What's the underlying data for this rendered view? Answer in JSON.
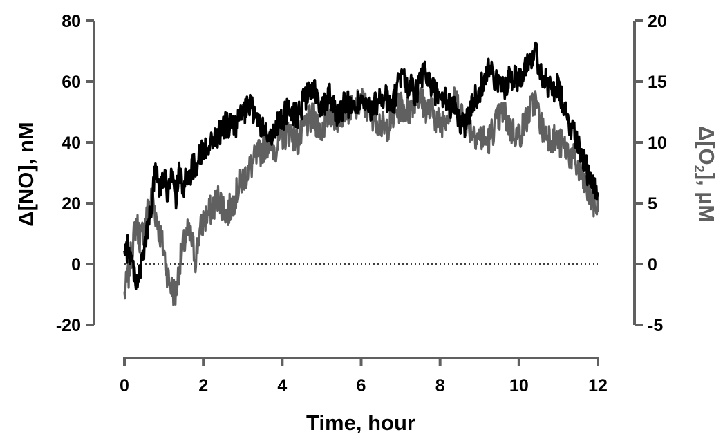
{
  "chart_data": {
    "type": "line",
    "x_axis": {
      "label": "Time, hour",
      "range": [
        0,
        12
      ],
      "ticks": [
        0,
        2,
        4,
        6,
        8,
        10,
        12
      ],
      "tick_labels": [
        "0",
        "2",
        "4",
        "6",
        "8",
        "10",
        "12"
      ]
    },
    "y_left": {
      "label": "Δ[NO], nM",
      "range": [
        -20,
        80
      ],
      "ticks": [
        -20,
        0,
        20,
        40,
        60,
        80
      ],
      "tick_labels": [
        "-20",
        "0",
        "20",
        "40",
        "60",
        "80"
      ]
    },
    "y_right": {
      "label_main": "Δ[O",
      "label_sub": "2",
      "label_tail": "], μM",
      "range": [
        -5,
        20
      ],
      "ticks": [
        -5,
        0,
        5,
        10,
        15,
        20
      ],
      "tick_labels": [
        "-5",
        "0",
        "5",
        "10",
        "15",
        "20"
      ]
    },
    "zero_line": {
      "y": 0,
      "style": "dotted"
    },
    "grid": false,
    "series": [
      {
        "axis": "right",
        "color": "#606060",
        "x": [
          0.0,
          0.1,
          0.2,
          0.3,
          0.4,
          0.5,
          0.6,
          0.7,
          0.8,
          0.9,
          1.0,
          1.1,
          1.2,
          1.3,
          1.4,
          1.5,
          1.6,
          1.7,
          1.8,
          1.9,
          2.0,
          2.2,
          2.4,
          2.6,
          2.8,
          3.0,
          3.2,
          3.4,
          3.6,
          3.8,
          4.0,
          4.2,
          4.4,
          4.6,
          4.8,
          5.0,
          5.2,
          5.4,
          5.6,
          5.8,
          6.0,
          6.2,
          6.4,
          6.6,
          6.8,
          7.0,
          7.2,
          7.4,
          7.6,
          7.8,
          8.0,
          8.2,
          8.4,
          8.6,
          8.8,
          9.0,
          9.2,
          9.4,
          9.6,
          9.8,
          10.0,
          10.2,
          10.4,
          10.6,
          10.8,
          11.0,
          11.2,
          11.4,
          11.6,
          11.8,
          12.0
        ],
        "y": [
          -2.5,
          -1.0,
          1.5,
          3.5,
          2.0,
          3.0,
          4.5,
          5.5,
          4.0,
          2.5,
          1.0,
          -1.0,
          -2.0,
          -2.5,
          0.0,
          1.5,
          2.5,
          2.0,
          0.5,
          2.5,
          3.5,
          4.5,
          5.5,
          4.0,
          5.5,
          7.0,
          8.0,
          9.0,
          10.0,
          9.5,
          10.5,
          11.0,
          10.0,
          11.5,
          12.0,
          11.0,
          12.5,
          12.0,
          13.0,
          12.5,
          13.5,
          12.5,
          12.0,
          11.0,
          12.0,
          13.0,
          12.5,
          14.0,
          13.0,
          12.5,
          11.5,
          12.5,
          13.5,
          12.0,
          11.0,
          10.5,
          10.0,
          11.5,
          12.5,
          11.0,
          10.5,
          12.0,
          13.5,
          11.0,
          10.5,
          10.0,
          9.5,
          8.5,
          7.0,
          5.5,
          4.5
        ]
      },
      {
        "axis": "left",
        "color": "#000000",
        "x": [
          0.0,
          0.1,
          0.2,
          0.3,
          0.4,
          0.5,
          0.6,
          0.7,
          0.8,
          0.9,
          1.0,
          1.1,
          1.2,
          1.3,
          1.4,
          1.5,
          1.6,
          1.7,
          1.8,
          1.9,
          2.0,
          2.2,
          2.4,
          2.6,
          2.8,
          3.0,
          3.2,
          3.4,
          3.6,
          3.8,
          4.0,
          4.2,
          4.4,
          4.6,
          4.8,
          5.0,
          5.2,
          5.4,
          5.6,
          5.8,
          6.0,
          6.2,
          6.4,
          6.6,
          6.8,
          7.0,
          7.2,
          7.4,
          7.6,
          7.8,
          8.0,
          8.2,
          8.4,
          8.6,
          8.8,
          9.0,
          9.2,
          9.4,
          9.6,
          9.8,
          10.0,
          10.2,
          10.4,
          10.6,
          10.8,
          11.0,
          11.2,
          11.4,
          11.6,
          11.8,
          12.0
        ],
        "y": [
          2,
          6,
          0,
          -5,
          -3,
          5,
          12,
          20,
          33,
          25,
          29,
          24,
          28,
          22,
          30,
          26,
          28,
          31,
          33,
          35,
          38,
          40,
          43,
          46,
          45,
          49,
          52,
          47,
          42,
          44,
          48,
          51,
          49,
          55,
          57,
          52,
          56,
          49,
          53,
          51,
          54,
          50,
          53,
          55,
          52,
          62,
          59,
          56,
          63,
          58,
          55,
          53,
          50,
          45,
          52,
          57,
          65,
          60,
          58,
          62,
          61,
          67,
          70,
          62,
          57,
          58,
          48,
          44,
          36,
          27,
          22
        ]
      }
    ]
  }
}
